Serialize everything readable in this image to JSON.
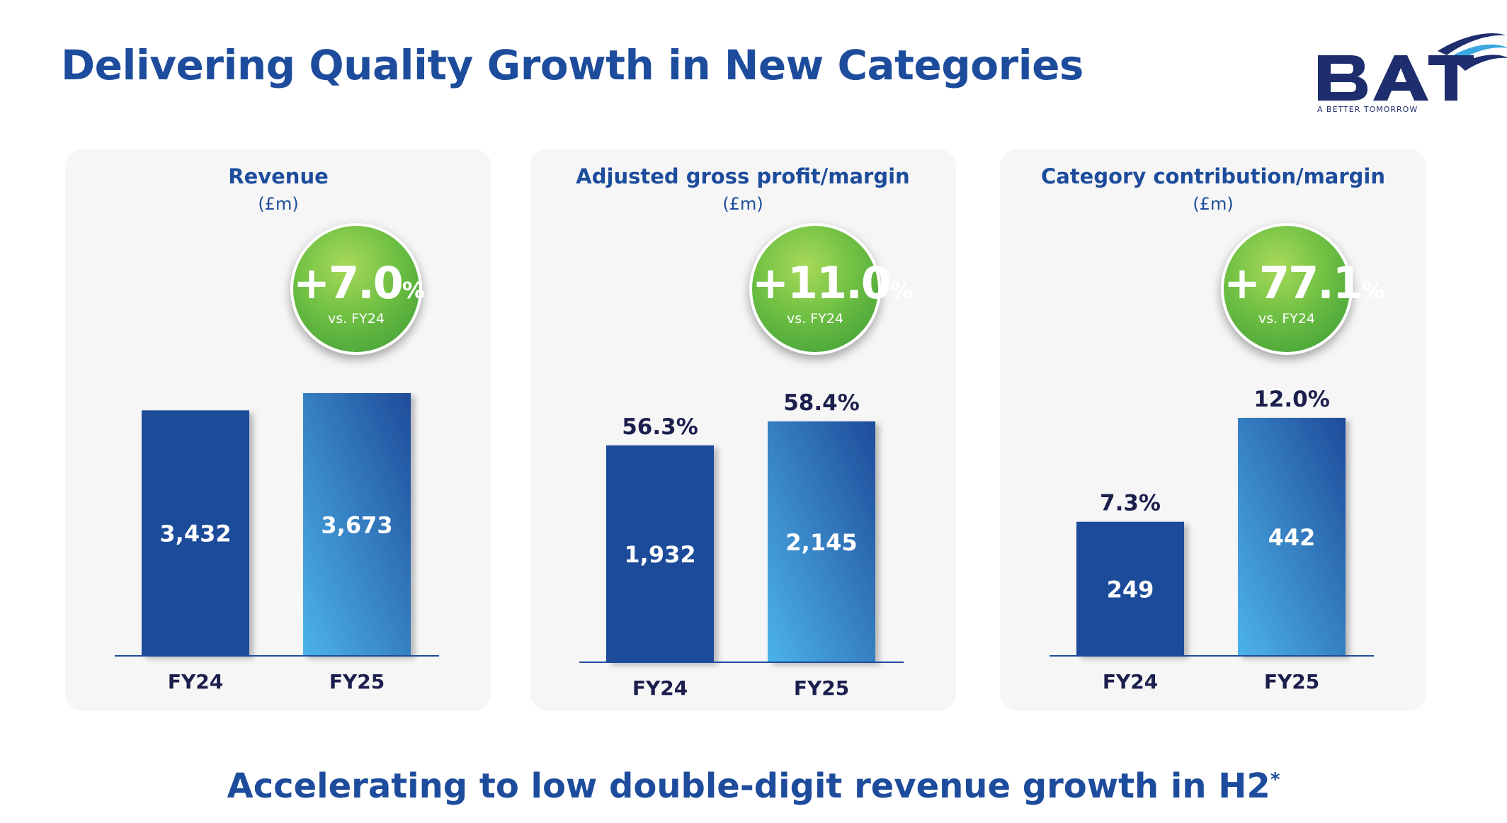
{
  "title": "Delivering Quality Growth in New Categories",
  "logo": {
    "wordmark": "BAT",
    "tagline": "A BETTER TOMORROW"
  },
  "panels": [
    {
      "title": "Revenue",
      "unit": "(£m)",
      "growth": "+7.0",
      "growth_pct": "%",
      "growth_sub": "vs. FY24"
    },
    {
      "title": "Adjusted gross profit/margin",
      "unit": "(£m)",
      "growth": "+11.0",
      "growth_pct": "%",
      "growth_sub": "vs. FY24"
    },
    {
      "title": "Category contribution/margin",
      "unit": "(£m)",
      "growth": "+77.1",
      "growth_pct": "%",
      "growth_sub": "vs. FY24"
    }
  ],
  "footer": {
    "text": "Accelerating to low double-digit revenue growth in H2",
    "mark": "*"
  },
  "colors": {
    "title": "#1d4c9c",
    "fy24_bar": "#1f4c9a",
    "fy25_bar_top": "#1f4c9a",
    "fy25_bar_bottom": "#4cb3ea",
    "badge": "#5cb646",
    "label": "#1a1f4d"
  },
  "chart_data": [
    {
      "type": "bar",
      "title": "Revenue",
      "categories": [
        "FY24",
        "FY25"
      ],
      "values": [
        3432,
        3673
      ],
      "value_labels": [
        "3,432",
        "3,673"
      ],
      "margin_labels": [
        "",
        ""
      ]
    },
    {
      "type": "bar",
      "title": "Adjusted gross profit/margin",
      "categories": [
        "FY24",
        "FY25"
      ],
      "values": [
        1932,
        2145
      ],
      "value_labels": [
        "1,932",
        "2,145"
      ],
      "margin_labels": [
        "56.3%",
        "58.4%"
      ]
    },
    {
      "type": "bar",
      "title": "Category contribution/margin",
      "categories": [
        "FY24",
        "FY25"
      ],
      "values": [
        249,
        442
      ],
      "value_labels": [
        "249",
        "442"
      ],
      "margin_labels": [
        "7.3%",
        "12.0%"
      ]
    }
  ]
}
